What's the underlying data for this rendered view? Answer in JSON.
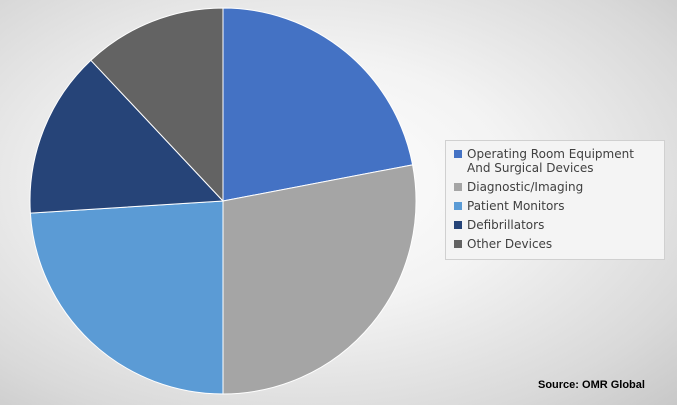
{
  "chart_data": {
    "type": "pie",
    "title": "",
    "slices": [
      {
        "label": "Operating Room Equipment And Surgical Devices",
        "value": 22,
        "color": "#4472C4"
      },
      {
        "label": "Diagnostic/Imaging",
        "value": 28,
        "color": "#A5A5A5"
      },
      {
        "label": "Patient Monitors",
        "value": 24,
        "color": "#5B9BD5"
      },
      {
        "label": "Defibrillators",
        "value": 14,
        "color": "#264478"
      },
      {
        "label": "Other Devices",
        "value": 12,
        "color": "#636363"
      }
    ],
    "legend_position": "right"
  },
  "source": "Source: OMR Global"
}
